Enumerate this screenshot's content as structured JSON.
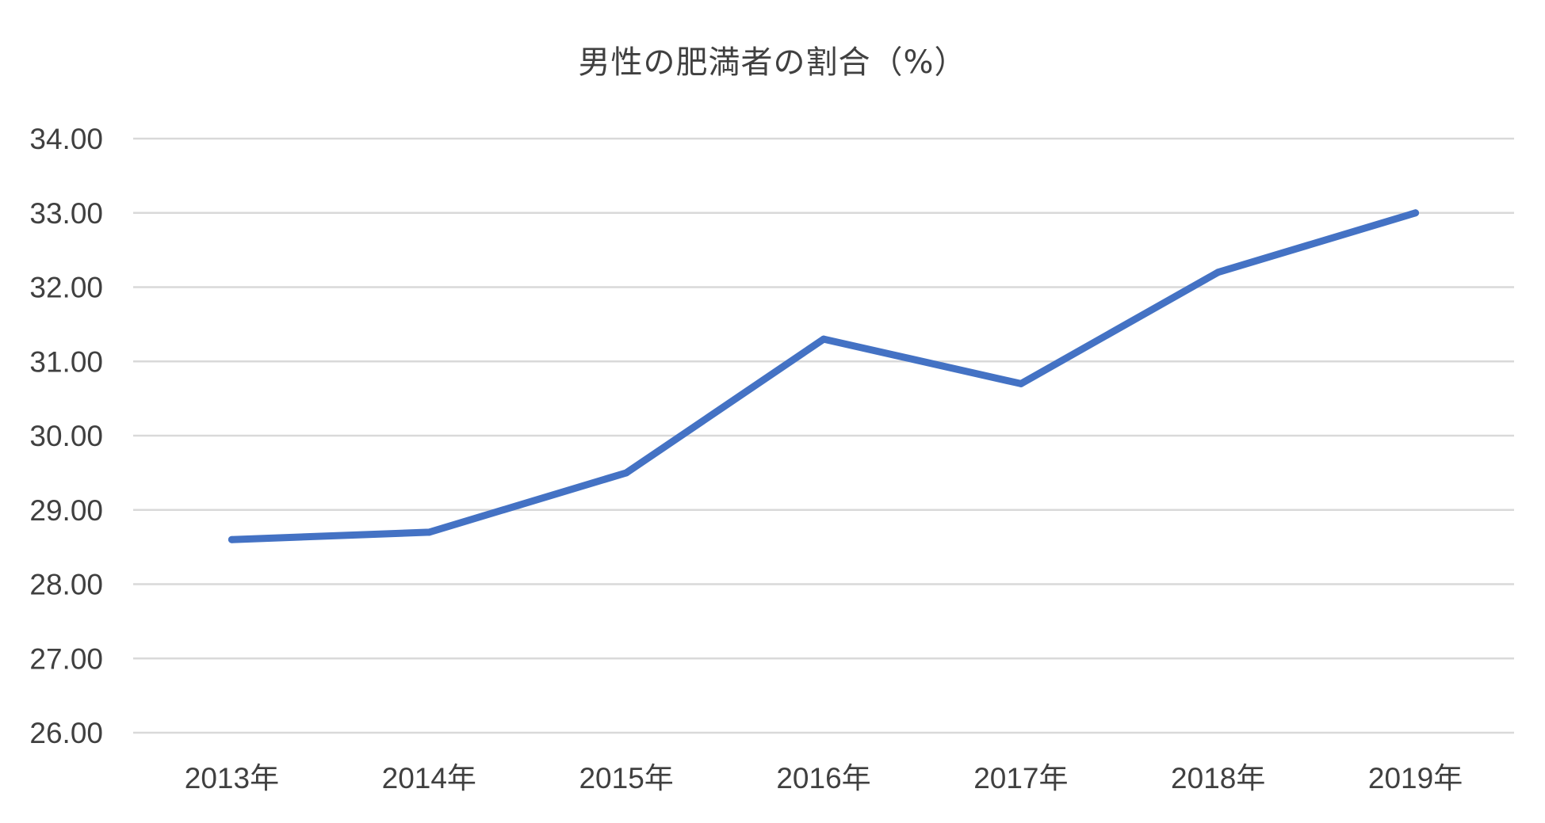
{
  "chart_data": {
    "type": "line",
    "title": "男性の肥満者の割合（%）",
    "categories": [
      "2013年",
      "2014年",
      "2015年",
      "2016年",
      "2017年",
      "2018年",
      "2019年"
    ],
    "series": [
      {
        "values": [
          28.6,
          28.7,
          29.5,
          31.3,
          30.7,
          32.2,
          33.0
        ],
        "color": "#4472C4"
      }
    ],
    "ylim": [
      26,
      34
    ],
    "yticks": [
      "26.00",
      "27.00",
      "28.00",
      "29.00",
      "30.00",
      "31.00",
      "32.00",
      "33.00",
      "34.00"
    ],
    "grid": true,
    "legend": "none",
    "xlabel": "",
    "ylabel": ""
  }
}
